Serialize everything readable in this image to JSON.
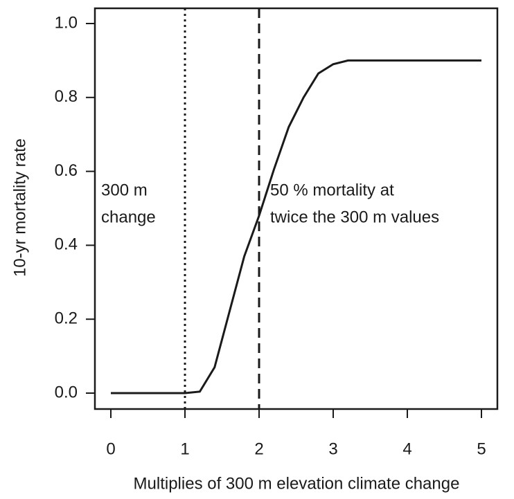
{
  "chart_data": {
    "type": "line",
    "x_label": "Multiplies of 300 m elevation climate change",
    "y_label": "10-yr mortality rate",
    "x": [
      0,
      1,
      1.2,
      1.4,
      1.6,
      1.8,
      2.0,
      2.2,
      2.4,
      2.6,
      2.8,
      3.0,
      3.2,
      4,
      5
    ],
    "values": [
      0,
      0,
      0.004,
      0.07,
      0.22,
      0.37,
      0.48,
      0.605,
      0.72,
      0.8,
      0.865,
      0.89,
      0.9,
      0.9,
      0.9
    ],
    "color": "#1a1a1a",
    "xlim": [
      0,
      5
    ],
    "ylim": [
      0,
      1
    ],
    "xticks": [
      0,
      1,
      2,
      3,
      4,
      5
    ],
    "yticks": [
      {
        "value": 0,
        "label": "0.0"
      },
      {
        "value": 0.2,
        "label": "0.2"
      },
      {
        "value": 0.4,
        "label": "0.4"
      },
      {
        "value": 0.6,
        "label": "0.6"
      },
      {
        "value": 0.8,
        "label": "0.8"
      },
      {
        "value": 1,
        "label": "1.0"
      }
    ],
    "vlines": [
      {
        "x": 1,
        "style": "dotted"
      },
      {
        "x": 2,
        "style": "dashed"
      }
    ],
    "annotations": [
      {
        "lines": [
          "300 m",
          "change"
        ]
      },
      {
        "lines": [
          "50 % mortality at",
          "twice the 300 m values"
        ]
      }
    ]
  }
}
